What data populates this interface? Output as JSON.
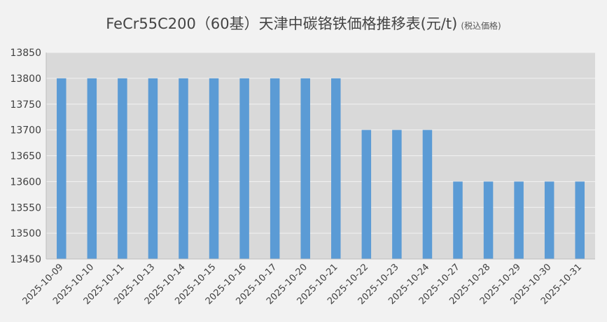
{
  "chart_data": {
    "type": "bar",
    "title": "FeCr55C200（60基）天津中碳铬铁価格推移表(元/t)",
    "subtitle": "(税込価格)",
    "xlabel": "",
    "ylabel": "",
    "categories": [
      "2025-10-09",
      "2025-10-10",
      "2025-10-11",
      "2025-10-13",
      "2025-10-14",
      "2025-10-15",
      "2025-10-16",
      "2025-10-17",
      "2025-10-20",
      "2025-10-21",
      "2025-10-22",
      "2025-10-23",
      "2025-10-24",
      "2025-10-27",
      "2025-10-28",
      "2025-10-29",
      "2025-10-30",
      "2025-10-31"
    ],
    "values": [
      13800,
      13800,
      13800,
      13800,
      13800,
      13800,
      13800,
      13800,
      13800,
      13800,
      13700,
      13700,
      13700,
      13600,
      13600,
      13600,
      13600,
      13600
    ],
    "ylim": [
      13450,
      13850
    ],
    "yticks": [
      13450,
      13500,
      13550,
      13600,
      13650,
      13700,
      13750,
      13800,
      13850
    ],
    "grid": true,
    "legend": "none",
    "colors": {
      "bar": "#5b9bd5",
      "plot_background": "#d9d9d9",
      "gridline": "#f2f2f2",
      "text": "#404040"
    }
  }
}
